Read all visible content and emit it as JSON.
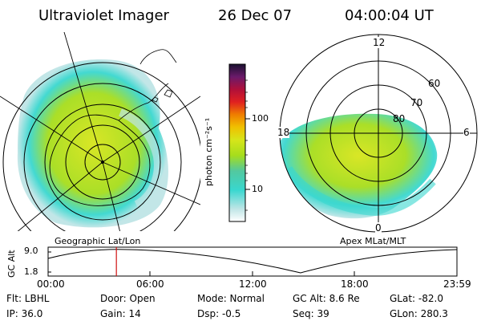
{
  "header": {
    "title": "Ultraviolet Imager",
    "date": "26 Dec 07",
    "time": "04:00:04 UT"
  },
  "left_panel": {
    "caption": "Geographic Lat/Lon"
  },
  "right_panel": {
    "caption": "Apex MLat/MLT",
    "mlt_labels": {
      "top": "12",
      "left": "18",
      "right": "6",
      "bottom": "0"
    },
    "lat_labels": [
      "60",
      "70",
      "80"
    ]
  },
  "colorbar": {
    "unit_label": "photon cm⁻²s⁻¹",
    "ticks": [
      "100",
      "10"
    ]
  },
  "altitude_strip": {
    "label": "GC Alt",
    "y_ticks": [
      "9.0",
      "1.8"
    ],
    "x_ticks": [
      "00:00",
      "06:00",
      "12:00",
      "18:00",
      "23:59"
    ],
    "current_time_fraction": 0.167,
    "marker_color": "#d01010"
  },
  "status": {
    "flt": "Flt: LBHL",
    "door": "Door: Open",
    "mode": "Mode: Normal",
    "gc_alt": "GC Alt: 8.6 Re",
    "glat": "GLat: -82.0",
    "ip": "IP: 36.0",
    "gain": "Gain: 14",
    "dsp": "Dsp:    -0.5",
    "seq": "Seq: 39",
    "glon": "GLon: 280.3"
  },
  "colors": {
    "aurora_green": "#a6dd1c",
    "aurora_yellow": "#d7e51a",
    "aurora_cyan": "#39d7cf",
    "aurora_pale": "#bfe5e6"
  }
}
